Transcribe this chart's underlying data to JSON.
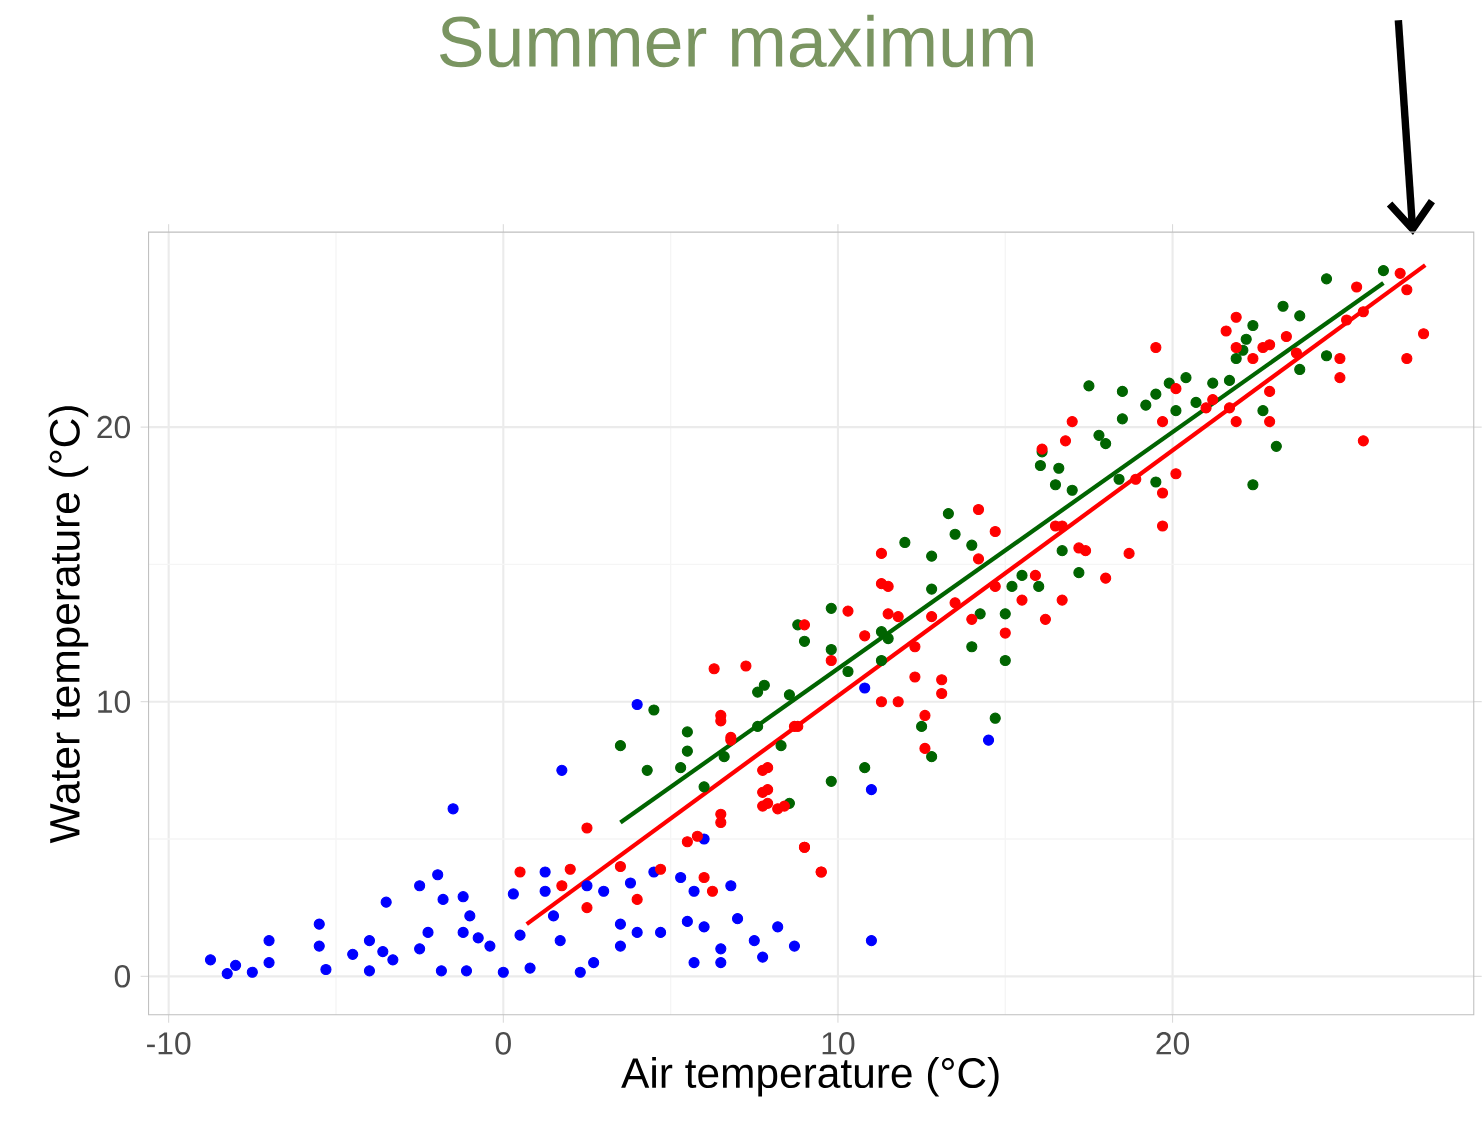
{
  "chart_data": {
    "type": "scatter",
    "title": "Summer maximum",
    "xlabel": "Air temperature (°C)",
    "ylabel": "Water temperature (°C)",
    "xlim": [
      -10.6,
      29
    ],
    "ylim": [
      -1.4,
      27.1
    ],
    "xticks": [
      -10,
      0,
      10,
      20
    ],
    "yticks": [
      0,
      10,
      20
    ],
    "grid": true,
    "series": [
      {
        "marker": "circle",
        "color": "#0000ff",
        "x": [
          -8.75,
          -8.25,
          -8.0,
          -7.5,
          -7.0,
          -7.0,
          -5.5,
          -5.5,
          -5.3,
          -4.5,
          -4.0,
          -4.0,
          -3.5,
          -3.6,
          -3.3,
          -2.5,
          -2.5,
          -2.25,
          -1.96,
          -1.5,
          -1.8,
          -1.2,
          -1.2,
          -1.0,
          -1.85,
          -1.1,
          -0.75,
          -0.4,
          0,
          0.3,
          0.5,
          0.8,
          1.25,
          1.25,
          1.5,
          1.7,
          1.75,
          2.3,
          2.5,
          3.0,
          2.7,
          3.5,
          3.5,
          3.8,
          4.0,
          4.0,
          4.5,
          4.7,
          5.3,
          5.5,
          5.7,
          5.7,
          6.0,
          6.0,
          6.5,
          6.5,
          6.8,
          7.0,
          7.5,
          7.75,
          8.2,
          8.7,
          10.8,
          11.0,
          11.0,
          14.5
        ],
        "values": [
          0.6,
          0.1,
          0.4,
          0.15,
          1.3,
          0.5,
          1.9,
          1.1,
          0.25,
          0.8,
          1.3,
          0.2,
          2.7,
          0.9,
          0.6,
          3.3,
          1.0,
          1.6,
          3.7,
          6.1,
          2.8,
          2.9,
          1.6,
          2.2,
          0.2,
          0.2,
          1.4,
          1.1,
          0.15,
          3.0,
          1.5,
          0.3,
          3.8,
          3.1,
          2.2,
          1.3,
          7.5,
          0.15,
          3.3,
          3.1,
          0.5,
          1.9,
          1.1,
          3.4,
          9.9,
          1.6,
          3.8,
          1.6,
          3.6,
          2.0,
          3.1,
          0.5,
          5.0,
          1.8,
          1.0,
          0.5,
          3.3,
          2.1,
          1.3,
          0.7,
          1.8,
          1.1,
          10.5,
          6.8,
          1.3,
          8.6
        ]
      },
      {
        "marker": "circle",
        "color": "#006400",
        "x": [
          3.5,
          4.5,
          4.3,
          5.5,
          5.5,
          5.3,
          6.0,
          6.6,
          7.6,
          7.6,
          7.8,
          8.55,
          8.3,
          8.55,
          8.8,
          9.0,
          9.8,
          9.8,
          9.8,
          10.3,
          10.8,
          11.3,
          11.3,
          11.5,
          12.0,
          12.8,
          12.8,
          12.5,
          12.8,
          13.3,
          13.5,
          14.0,
          14.0,
          14.25,
          14.7,
          15.0,
          15.0,
          15.2,
          15.5,
          16.0,
          16.05,
          16.5,
          17.0,
          17.2,
          16.7,
          17.5,
          18.5,
          18.5,
          17.8,
          18.0,
          19.2,
          19.5,
          19.9,
          20.4,
          20.1,
          20.7,
          21.2,
          21.7,
          22.1,
          22.4,
          22.2,
          23.3,
          23.8,
          24.6,
          24.6,
          23.8,
          26.3,
          22.4,
          23.1,
          22.7,
          21.9,
          16.6,
          16.1,
          19.5,
          18.4
        ],
        "values": [
          8.4,
          9.7,
          7.5,
          8.9,
          8.2,
          7.6,
          6.9,
          8.0,
          9.1,
          10.35,
          10.6,
          10.25,
          8.4,
          6.3,
          12.8,
          12.2,
          13.4,
          11.9,
          7.1,
          11.1,
          7.6,
          11.5,
          12.55,
          12.3,
          15.8,
          15.3,
          14.1,
          9.1,
          8.0,
          16.85,
          16.1,
          15.7,
          12.0,
          13.2,
          9.4,
          13.2,
          11.5,
          14.2,
          14.6,
          14.2,
          18.6,
          17.9,
          17.7,
          14.7,
          15.5,
          21.5,
          21.3,
          20.3,
          19.7,
          19.4,
          20.8,
          21.2,
          21.6,
          21.8,
          20.6,
          20.9,
          21.6,
          21.7,
          22.8,
          23.7,
          23.2,
          24.4,
          24.05,
          25.4,
          22.6,
          22.1,
          25.7,
          17.9,
          19.3,
          20.6,
          22.5,
          18.5,
          19.1,
          18.0,
          18.1
        ]
      },
      {
        "marker": "circle",
        "color": "#ff0000",
        "x": [
          0.5,
          2.0,
          1.75,
          2.5,
          2.5,
          3.5,
          4.0,
          4.7,
          5.5,
          6.0,
          6.25,
          6.5,
          6.5,
          6.8,
          7.75,
          7.75,
          7.75,
          8.2,
          9.0,
          9.5,
          8.7,
          6.3,
          7.25,
          6.5,
          6.8,
          6.5,
          5.8,
          7.9,
          7.9,
          7.9,
          8.4,
          8.8,
          9.0,
          9.5,
          9.0,
          9.8,
          10.3,
          10.8,
          11.3,
          11.3,
          11.5,
          11.5,
          11.8,
          11.3,
          11.8,
          12.3,
          12.3,
          12.8,
          13.1,
          13.1,
          12.6,
          12.6,
          13.5,
          14.0,
          14.2,
          14.2,
          14.7,
          14.7,
          15.0,
          15.5,
          15.9,
          16.2,
          16.7,
          16.7,
          17.4,
          17.0,
          16.8,
          16.1,
          19.5,
          20.1,
          19.7,
          20.1,
          19.7,
          19.7,
          18.9,
          18.7,
          18.0,
          17.2,
          16.5,
          21.9,
          21.6,
          21.9,
          22.4,
          22.7,
          22.9,
          23.4,
          22.9,
          22.9,
          21.9,
          21.7,
          21.0,
          21.2,
          23.7,
          25.0,
          25.0,
          25.7,
          25.2,
          25.5,
          26.8,
          27.0,
          27.5,
          27.0,
          25.7
        ],
        "values": [
          3.8,
          3.9,
          3.3,
          2.5,
          5.4,
          4.0,
          2.8,
          3.9,
          4.9,
          3.6,
          3.1,
          5.6,
          9.3,
          8.6,
          7.5,
          6.7,
          6.2,
          6.1,
          4.7,
          3.8,
          9.1,
          11.2,
          11.3,
          9.5,
          8.7,
          5.9,
          5.1,
          7.6,
          6.8,
          6.3,
          6.2,
          9.1,
          4.7,
          3.8,
          12.8,
          11.5,
          13.3,
          12.4,
          15.4,
          14.3,
          14.2,
          13.2,
          13.1,
          10.0,
          10.0,
          10.9,
          12.0,
          13.1,
          10.8,
          10.3,
          9.5,
          8.3,
          13.6,
          13.0,
          17.0,
          15.2,
          16.2,
          14.2,
          12.5,
          13.7,
          14.6,
          13.0,
          13.7,
          16.4,
          15.5,
          20.2,
          19.5,
          19.2,
          22.9,
          21.4,
          20.2,
          18.3,
          17.6,
          16.4,
          18.1,
          15.4,
          14.5,
          15.6,
          16.4,
          24.0,
          23.5,
          22.9,
          22.5,
          22.9,
          23.0,
          23.3,
          21.3,
          20.2,
          20.2,
          20.7,
          20.7,
          21.0,
          22.7,
          22.5,
          21.8,
          24.2,
          23.9,
          25.1,
          25.6,
          25.0,
          23.4,
          22.5,
          19.5
        ]
      },
      {
        "type": "line",
        "marker": "none",
        "color": "#006400",
        "x": [
          3.5,
          26.3
        ],
        "values": [
          5.6,
          25.25
        ]
      },
      {
        "type": "line",
        "marker": "none",
        "color": "#ff0000",
        "x": [
          0.7,
          27.55
        ],
        "values": [
          1.9,
          25.9
        ]
      }
    ]
  }
}
